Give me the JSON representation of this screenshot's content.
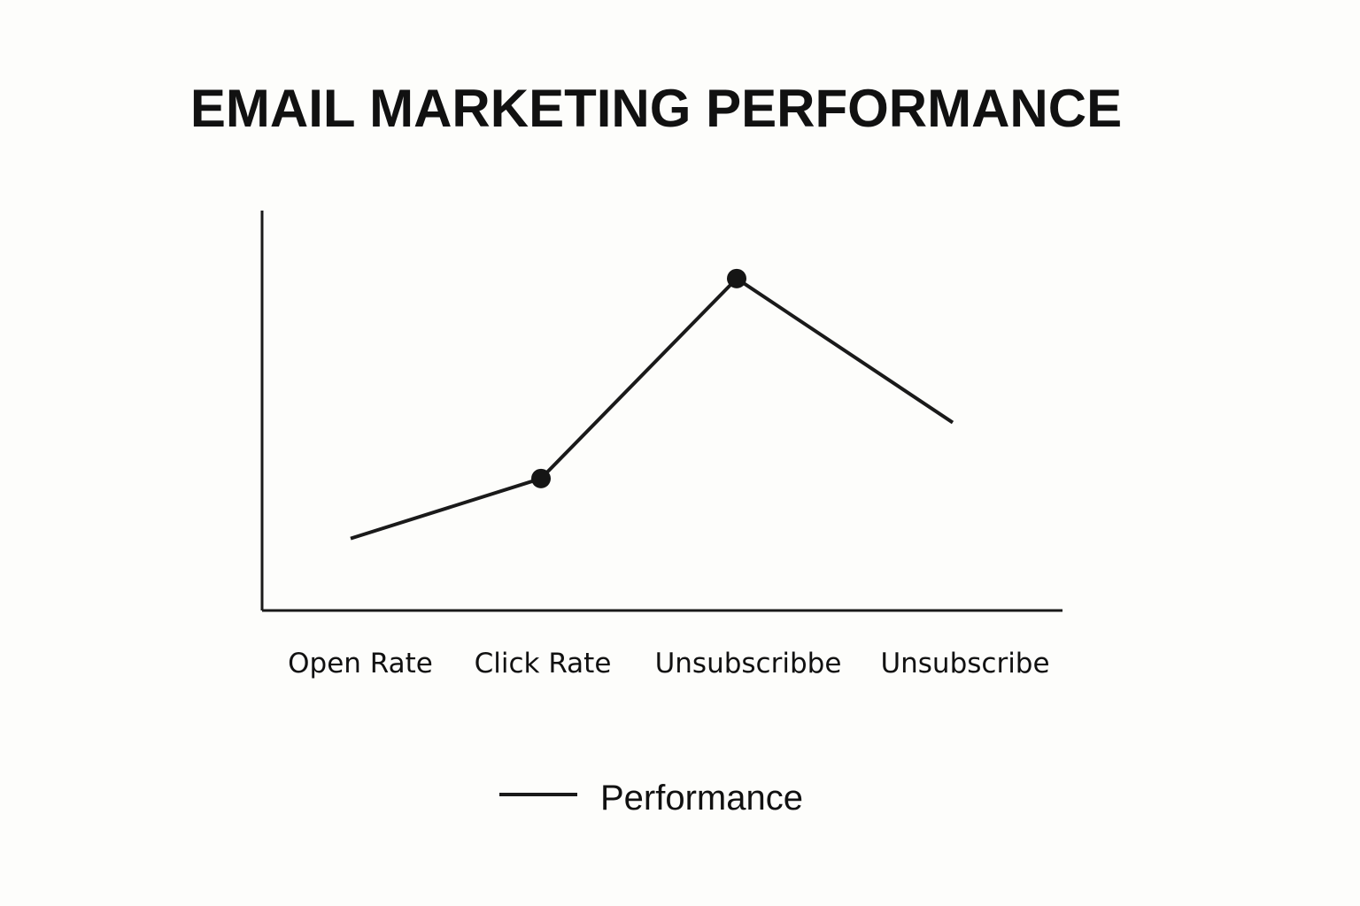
{
  "chart_data": {
    "type": "line",
    "title": "EMAIL MARKETING PERFORMANCE",
    "xlabel": "",
    "ylabel": "",
    "categories": [
      "Open Rate",
      "Click Rate",
      "Unsubscribbe",
      "Unsubscribe"
    ],
    "series": [
      {
        "name": "Performance",
        "values": [
          18,
          33,
          83,
          47
        ],
        "markers": [
          false,
          true,
          true,
          false
        ]
      }
    ],
    "ylim": [
      0,
      100
    ],
    "grid": false,
    "legend_position": "bottom-center",
    "colors": {
      "line": "#1a1a1a",
      "axis": "#1a1a1a",
      "background": "#fdfdfb"
    }
  }
}
